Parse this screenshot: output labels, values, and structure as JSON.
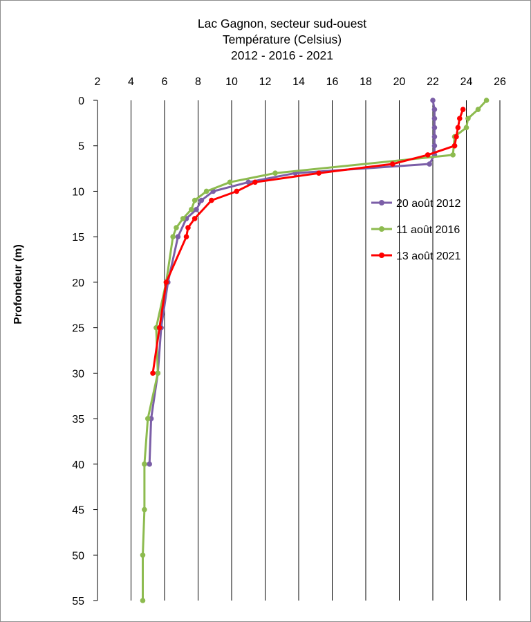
{
  "chart_data": {
    "type": "line",
    "title_lines": [
      "Lac Gagnon, secteur sud-ouest",
      "Température (Celsius)",
      "2012 - 2016 - 2021"
    ],
    "xlabel": "",
    "ylabel": "Profondeur (m)",
    "x_axis_position": "top",
    "y_axis_inverted": true,
    "xlim": [
      2,
      26
    ],
    "ylim": [
      0,
      55
    ],
    "x_ticks": [
      2,
      4,
      6,
      8,
      10,
      12,
      14,
      16,
      18,
      20,
      22,
      24,
      26
    ],
    "y_ticks": [
      0,
      5,
      10,
      15,
      20,
      25,
      30,
      35,
      40,
      45,
      50,
      55
    ],
    "grid": "vertical",
    "legend_position": "right",
    "series": [
      {
        "name": "20 août 2012",
        "color": "#7b5ea7",
        "temperature": [
          22.0,
          22.1,
          22.1,
          22.1,
          22.1,
          22.1,
          22.1,
          21.8,
          13.8,
          11.0,
          8.9,
          8.2,
          7.9,
          7.3,
          6.8,
          6.2,
          5.8,
          5.6,
          5.2,
          5.1
        ],
        "depth": [
          0,
          1,
          2,
          3,
          4,
          5,
          6,
          7,
          8,
          9,
          10,
          11,
          12,
          13,
          15,
          20,
          25,
          30,
          35,
          40
        ]
      },
      {
        "name": "11 août 2016",
        "color": "#8dbb4f",
        "temperature": [
          25.2,
          24.7,
          24.1,
          24.0,
          23.3,
          23.2,
          12.6,
          9.9,
          8.5,
          7.8,
          7.6,
          7.1,
          6.7,
          6.5,
          6.1,
          5.5,
          5.6,
          5.0,
          4.8,
          4.8,
          4.7,
          4.7
        ],
        "depth": [
          0,
          1,
          2,
          3,
          4,
          6,
          8,
          9,
          10,
          11,
          12,
          13,
          14,
          15,
          20,
          25,
          30,
          35,
          40,
          45,
          50,
          55
        ]
      },
      {
        "name": "13 août 2021",
        "color": "#ff0000",
        "temperature": [
          23.8,
          23.6,
          23.5,
          23.4,
          23.3,
          23.3,
          21.7,
          19.6,
          15.2,
          11.4,
          10.3,
          8.8,
          7.8,
          7.4,
          7.3,
          6.1,
          5.7,
          5.3
        ],
        "depth": [
          1,
          2,
          3,
          4,
          5,
          5,
          6,
          7,
          8,
          9,
          10,
          11,
          13,
          14,
          15,
          20,
          25,
          30
        ]
      }
    ]
  }
}
